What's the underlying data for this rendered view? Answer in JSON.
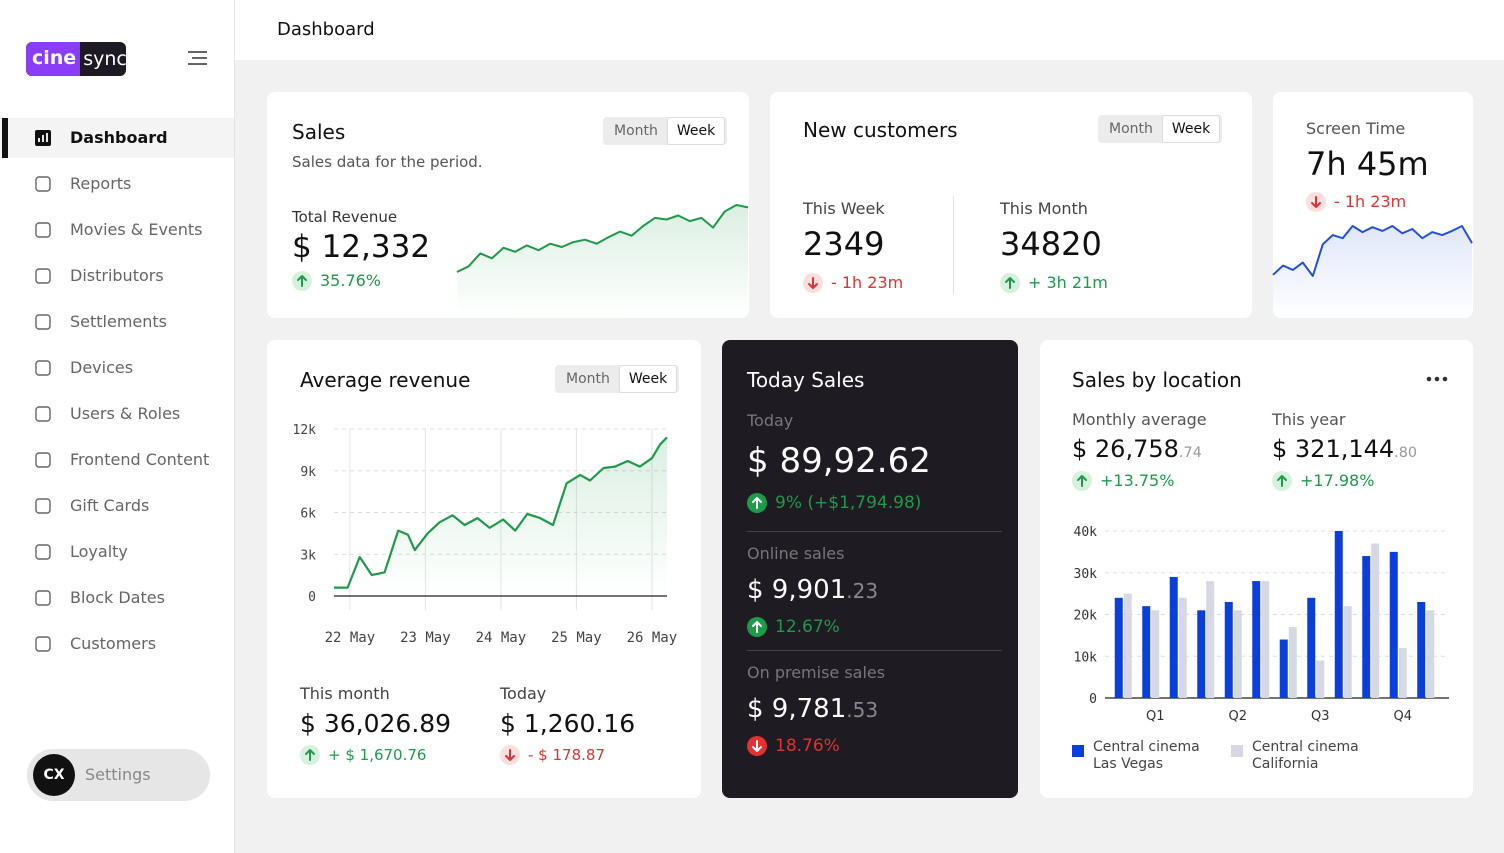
{
  "sidebar": {
    "logo": {
      "part1": "cine",
      "part2": "sync"
    },
    "nav": [
      "Dashboard",
      "Reports",
      "Movies & Events",
      "Distributors",
      "Settlements",
      "Devices",
      "Users & Roles",
      "Frontend Content",
      "Gift Cards",
      "Loyalty",
      "Block Dates",
      "Customers"
    ],
    "user": {
      "initials": "CX",
      "label": "Settings"
    }
  },
  "header": {
    "title": "Dashboard"
  },
  "cards": {
    "sales": {
      "title": "Sales",
      "subtitle": "Sales data for the period.",
      "toggle": [
        "Month",
        "Week"
      ],
      "metric_label": "Total Revenue",
      "value": "$ 12,332",
      "change": "35.76%",
      "trend": "up"
    },
    "new_customers": {
      "title": "New customers",
      "toggle": [
        "Month",
        "Week"
      ],
      "stats": [
        {
          "label": "This Week",
          "value": "2349",
          "change": "- 1h 23m",
          "trend": "down"
        },
        {
          "label": "This Month",
          "value": "34820",
          "change": "+ 3h 21m",
          "trend": "up"
        }
      ]
    },
    "screen_time": {
      "label": "Screen Time",
      "value": "7h 45m",
      "change": "- 1h 23m",
      "trend": "down"
    },
    "average_revenue": {
      "title": "Average revenue",
      "toggle": [
        "Month",
        "Week"
      ],
      "stats": [
        {
          "label": "This month",
          "value": "$ 36,026.89",
          "change": "+ $ 1,670.76",
          "trend": "up"
        },
        {
          "label": "Today",
          "value": "$ 1,260.16",
          "change": "- $ 178.87",
          "trend": "down"
        }
      ]
    },
    "today_sales": {
      "title": "Today Sales",
      "sections": [
        {
          "label": "Today",
          "value": "$ 89,92.62",
          "change": "9% (+$1,794.98)",
          "trend": "up"
        },
        {
          "label": "Online sales",
          "value": "$ 9,901",
          "decimals": ".23",
          "change": "12.67%",
          "trend": "up"
        },
        {
          "label": "On premise sales",
          "value": "$ 9,781",
          "decimals": ".53",
          "change": "18.76%",
          "trend": "down"
        }
      ]
    },
    "sales_by_location": {
      "title": "Sales by location",
      "stats": [
        {
          "label": "Monthly average",
          "value": "$ 26,758",
          "decimals": ".74",
          "change": "+13.75%",
          "trend": "up"
        },
        {
          "label": "This year",
          "value": "$ 321,144",
          "decimals": ".80",
          "change": "+17.98%",
          "trend": "up"
        }
      ]
    }
  },
  "chart_data": [
    {
      "type": "sparkline",
      "color": "#1e9a4a",
      "values": [
        5,
        12,
        28,
        22,
        35,
        30,
        38,
        32,
        40,
        36,
        42,
        45,
        40,
        48,
        55,
        50,
        62,
        72,
        70,
        75,
        68,
        72,
        60,
        80,
        88,
        85
      ]
    },
    {
      "type": "sparkline",
      "color": "#2450d8",
      "values": [
        10,
        25,
        18,
        30,
        8,
        60,
        75,
        70,
        90,
        80,
        88,
        82,
        90,
        78,
        85,
        70,
        80,
        75,
        82,
        90,
        62
      ]
    },
    {
      "type": "line",
      "color": "#1e9a4a",
      "grid": true,
      "x": [
        -0.21,
        -0.03,
        0.13,
        0.29,
        0.46,
        0.64,
        0.77,
        0.86,
        1.03,
        1.19,
        1.36,
        1.52,
        1.69,
        1.85,
        2.03,
        2.19,
        2.35,
        2.52,
        2.69,
        2.87,
        3.05,
        3.18,
        3.36,
        3.51,
        3.68,
        3.84,
        4.0,
        4.11,
        4.2
      ],
      "values": [
        600,
        600,
        2800,
        1500,
        1700,
        4700,
        4400,
        3300,
        4500,
        5300,
        5800,
        5100,
        5600,
        4900,
        5500,
        4700,
        5900,
        5600,
        5100,
        8100,
        8700,
        8300,
        9200,
        9300,
        9700,
        9300,
        9900,
        10900,
        11400
      ],
      "xlim": [
        -0.21,
        4.2
      ],
      "xticks": [
        {
          "value": 0,
          "label": "22 May"
        },
        {
          "value": 1,
          "label": "23 May"
        },
        {
          "value": 2,
          "label": "24 May"
        },
        {
          "value": 3,
          "label": "25 May"
        },
        {
          "value": 4,
          "label": "26 May"
        }
      ],
      "ylim": [
        0,
        12000
      ],
      "yticks": [
        0,
        {
          "value": 3000,
          "label": "3k"
        },
        {
          "value": 6000,
          "label": "6k"
        },
        {
          "value": 9000,
          "label": "9k"
        },
        {
          "value": 12000,
          "label": "12k"
        }
      ]
    },
    {
      "type": "bar",
      "grid": true,
      "categories": [
        null,
        "Q1",
        null,
        null,
        "Q2",
        null,
        null,
        "Q3",
        null,
        null,
        "Q4",
        null
      ],
      "series": [
        {
          "name": "Central cinema Las Vegas",
          "color": "#0b3fd9",
          "values": [
            24000,
            22000,
            29000,
            21000,
            23000,
            28000,
            14000,
            24000,
            40000,
            34000,
            35000,
            23000
          ]
        },
        {
          "name": "Central cinema California",
          "color": "#d6d9e4",
          "values": [
            25000,
            21000,
            24000,
            28000,
            21000,
            28000,
            17000,
            9000,
            22000,
            37000,
            12000,
            21000
          ]
        }
      ],
      "ylim": [
        0,
        40000
      ],
      "yticks": [
        0,
        {
          "value": 10000,
          "label": "10k"
        },
        {
          "value": 20000,
          "label": "20k"
        },
        {
          "value": 30000,
          "label": "30k"
        },
        {
          "value": 40000,
          "label": "40k"
        }
      ]
    }
  ]
}
